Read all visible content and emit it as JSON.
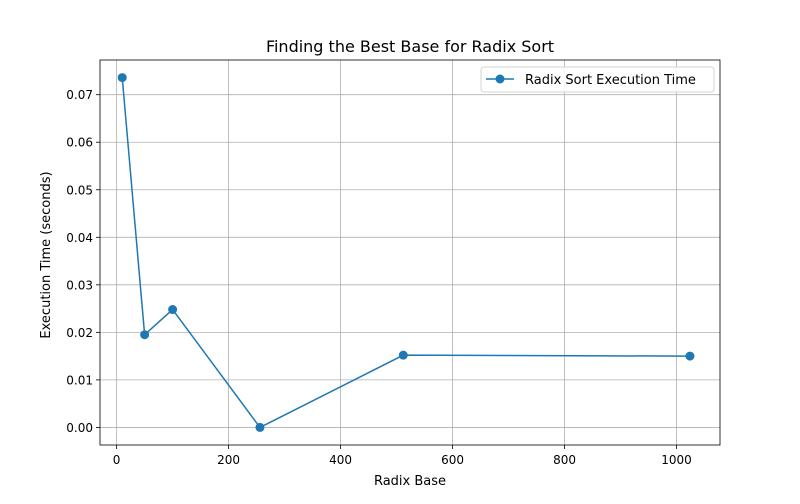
{
  "chart_data": {
    "type": "line",
    "title": "Finding the Best Base for Radix Sort",
    "xlabel": "Radix Base",
    "ylabel": "Execution Time (seconds)",
    "xlim": [
      -29.7,
      1077.7
    ],
    "ylim": [
      -0.0037,
      0.0773
    ],
    "xticks": [
      0,
      200,
      400,
      600,
      800,
      1000
    ],
    "xtick_labels": [
      "0",
      "200",
      "400",
      "600",
      "800",
      "1000"
    ],
    "yticks": [
      0.0,
      0.01,
      0.02,
      0.03,
      0.04,
      0.05,
      0.06,
      0.07
    ],
    "ytick_labels": [
      "0.00",
      "0.01",
      "0.02",
      "0.03",
      "0.04",
      "0.05",
      "0.06",
      "0.07"
    ],
    "grid": true,
    "legend_position": "top-right",
    "series": [
      {
        "name": "Radix Sort Execution Time",
        "color": "#1f77b4",
        "marker": "circle",
        "x": [
          10,
          50,
          100,
          256,
          512,
          1024
        ],
        "y": [
          0.0736,
          0.0195,
          0.0248,
          0.0,
          0.0152,
          0.015
        ]
      }
    ]
  }
}
